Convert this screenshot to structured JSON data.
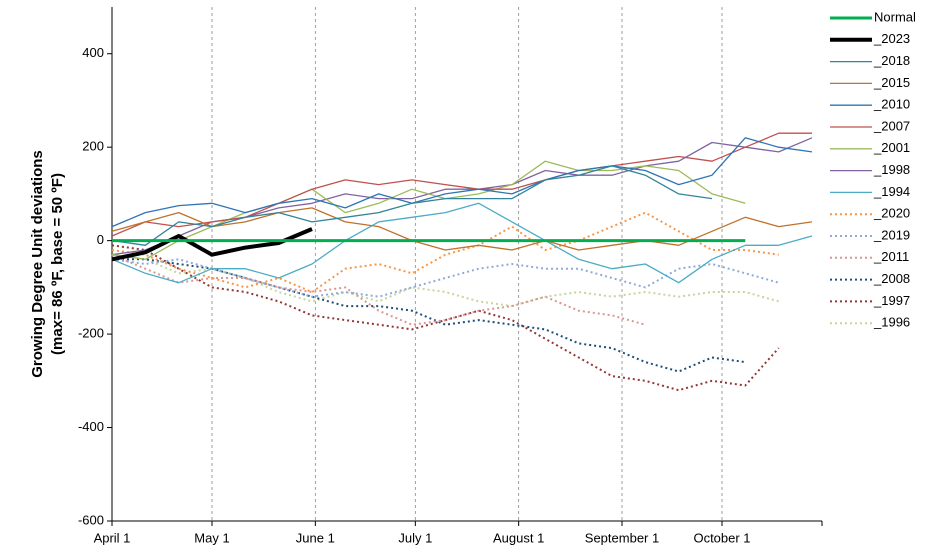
{
  "chart_data": {
    "type": "line",
    "ylabel": [
      "Growing Degree Unit deviations",
      "(max= 86 ºF, base = 50 ºF)"
    ],
    "x": [
      0,
      10,
      20,
      30,
      40,
      50,
      60,
      70,
      80,
      90,
      100,
      110,
      120,
      130,
      140,
      150,
      160,
      170,
      180,
      190,
      200,
      210
    ],
    "xlim": [
      0,
      213
    ],
    "xticks": [
      {
        "value": 0,
        "label": "April 1"
      },
      {
        "value": 30,
        "label": "May 1"
      },
      {
        "value": 61,
        "label": "June 1"
      },
      {
        "value": 91,
        "label": "July 1"
      },
      {
        "value": 122,
        "label": "August 1"
      },
      {
        "value": 153,
        "label": "September 1"
      },
      {
        "value": 183,
        "label": "October 1"
      }
    ],
    "ylim": [
      -600,
      500
    ],
    "yticks": [
      -600,
      -400,
      -200,
      0,
      200,
      400
    ],
    "grid": true,
    "legend": "right",
    "series": [
      {
        "name": "Normal",
        "color": "#00b050",
        "width": 3,
        "dash": false,
        "values": [
          0,
          0,
          0,
          0,
          0,
          0,
          0,
          0,
          0,
          0,
          0,
          0,
          0,
          0,
          0,
          0,
          0,
          0,
          0,
          0,
          null,
          null
        ]
      },
      {
        "name": "_2023",
        "color": "#000000",
        "width": 4,
        "dash": false,
        "values": [
          -40,
          -25,
          10,
          -30,
          -15,
          -5,
          25,
          null,
          null,
          null,
          null,
          null,
          null,
          null,
          null,
          null,
          null,
          null,
          null,
          null,
          null,
          null
        ]
      },
      {
        "name": "_2018",
        "color": "#31849b",
        "width": 1.3,
        "dash": false,
        "values": [
          0,
          -10,
          40,
          30,
          50,
          60,
          40,
          50,
          60,
          80,
          90,
          90,
          90,
          130,
          140,
          160,
          140,
          100,
          90,
          null,
          null,
          null
        ]
      },
      {
        "name": "_2015",
        "color": "#c0712b",
        "width": 1.3,
        "dash": false,
        "values": [
          20,
          40,
          60,
          30,
          40,
          60,
          70,
          40,
          30,
          0,
          -20,
          -10,
          -20,
          0,
          -20,
          -10,
          0,
          -10,
          20,
          50,
          30,
          40
        ]
      },
      {
        "name": "_2010",
        "color": "#2e75b6",
        "width": 1.3,
        "dash": false,
        "values": [
          30,
          60,
          75,
          80,
          60,
          80,
          90,
          70,
          100,
          80,
          100,
          110,
          100,
          130,
          150,
          160,
          150,
          120,
          140,
          220,
          200,
          190
        ]
      },
      {
        "name": "_2007",
        "color": "#c0504d",
        "width": 1.3,
        "dash": false,
        "values": [
          10,
          40,
          30,
          40,
          50,
          80,
          110,
          130,
          120,
          130,
          120,
          110,
          110,
          130,
          150,
          160,
          170,
          180,
          170,
          200,
          230,
          230
        ]
      },
      {
        "name": "_2001",
        "color": "#9bbb59",
        "width": 1.3,
        "dash": false,
        "values": [
          -30,
          -40,
          0,
          30,
          60,
          80,
          110,
          60,
          80,
          110,
          90,
          100,
          120,
          170,
          150,
          150,
          160,
          150,
          100,
          80,
          null,
          null
        ]
      },
      {
        "name": "_1998",
        "color": "#8064a2",
        "width": 1.3,
        "dash": false,
        "values": [
          -30,
          -20,
          10,
          40,
          50,
          70,
          80,
          100,
          90,
          90,
          110,
          110,
          120,
          150,
          140,
          140,
          160,
          170,
          210,
          200,
          190,
          220
        ]
      },
      {
        "name": "_1994",
        "color": "#4bacc6",
        "width": 1.3,
        "dash": false,
        "values": [
          -40,
          -70,
          -90,
          -60,
          -60,
          -80,
          -50,
          0,
          40,
          50,
          60,
          80,
          40,
          0,
          -40,
          -60,
          -50,
          -90,
          -40,
          -10,
          -10,
          10
        ]
      },
      {
        "name": "_2020",
        "color": "#f79646",
        "width": 2,
        "dash": true,
        "values": [
          -20,
          -30,
          -60,
          -80,
          -100,
          -80,
          -110,
          -60,
          -50,
          -70,
          -30,
          -10,
          30,
          -20,
          0,
          30,
          60,
          20,
          -20,
          -20,
          -30,
          null
        ]
      },
      {
        "name": "_2019",
        "color": "#8eaadb",
        "width": 2,
        "dash": true,
        "values": [
          -40,
          -50,
          -40,
          -60,
          -80,
          -100,
          -120,
          -110,
          -120,
          -100,
          -80,
          -60,
          -50,
          -60,
          -60,
          -80,
          -100,
          -60,
          -50,
          -70,
          -90,
          null
        ]
      },
      {
        "name": "_2011",
        "color": "#d99694",
        "width": 2,
        "dash": true,
        "values": [
          -30,
          -60,
          -90,
          -80,
          -80,
          -100,
          -110,
          -100,
          -150,
          -180,
          -170,
          -150,
          -140,
          -120,
          -150,
          -160,
          -180,
          null,
          null,
          null,
          null,
          null
        ]
      },
      {
        "name": "_2008",
        "color": "#1f4e79",
        "width": 2,
        "dash": true,
        "values": [
          -40,
          -40,
          -50,
          -60,
          -80,
          -100,
          -120,
          -140,
          -140,
          -150,
          -180,
          -170,
          -180,
          -190,
          -220,
          -230,
          -260,
          -280,
          -250,
          -260,
          null,
          null
        ]
      },
      {
        "name": "_1997",
        "color": "#943634",
        "width": 2,
        "dash": true,
        "values": [
          -10,
          -20,
          -60,
          -100,
          -110,
          -130,
          -160,
          -170,
          -180,
          -190,
          -170,
          -150,
          -170,
          -210,
          -250,
          -290,
          -300,
          -320,
          -300,
          -310,
          -230,
          null
        ]
      },
      {
        "name": "_1996",
        "color": "#c3d69b",
        "width": 2,
        "dash": true,
        "values": [
          -30,
          -40,
          -70,
          -60,
          -80,
          -110,
          -130,
          -110,
          -130,
          -100,
          -110,
          -130,
          -140,
          -120,
          -110,
          -120,
          -110,
          -120,
          -110,
          -110,
          -130,
          null
        ]
      }
    ]
  }
}
